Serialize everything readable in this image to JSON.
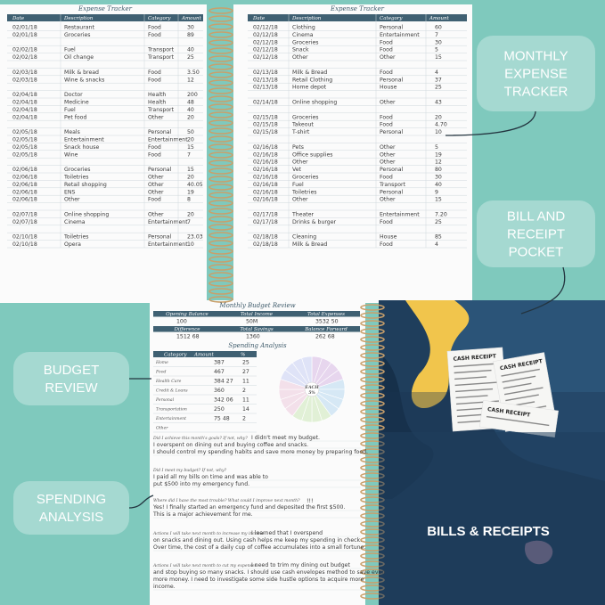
{
  "callouts": [
    "MONTHLY EXPENSE TRACKER",
    "BILL AND RECEIPT POCKET",
    "BUDGET REVIEW",
    "SPENDING ANALYSIS"
  ],
  "tracker_left": {
    "title": "Expense Tracker",
    "headers": [
      "Date",
      "Description",
      "Category",
      "Amount"
    ],
    "rows": [
      [
        "02/01/18",
        "Restaurant",
        "Food",
        "30"
      ],
      [
        "02/01/18",
        "Groceries",
        "Food",
        "89"
      ],
      null,
      [
        "02/02/18",
        "Fuel",
        "Transport",
        "40"
      ],
      [
        "02/02/18",
        "Oil change",
        "Transport",
        "25"
      ],
      null,
      [
        "02/03/18",
        "Milk & bread",
        "Food",
        "3.50"
      ],
      [
        "02/03/18",
        "Wine & snacks",
        "Food",
        "12"
      ],
      null,
      [
        "02/04/18",
        "Doctor",
        "Health",
        "200"
      ],
      [
        "02/04/18",
        "Medicine",
        "Health",
        "48"
      ],
      [
        "02/04/18",
        "Fuel",
        "Transport",
        "40"
      ],
      [
        "02/04/18",
        "Pet food",
        "Other",
        "20"
      ],
      null,
      [
        "02/05/18",
        "Meals",
        "Personal",
        "50"
      ],
      [
        "02/05/18",
        "Entertainment",
        "Entertainment",
        "20"
      ],
      [
        "02/05/18",
        "Snack house",
        "Food",
        "15"
      ],
      [
        "02/05/18",
        "Wine",
        "Food",
        "7"
      ],
      null,
      [
        "02/06/18",
        "Groceries",
        "Personal",
        "15"
      ],
      [
        "02/06/18",
        "Toiletries",
        "Other",
        "20"
      ],
      [
        "02/06/18",
        "Retail shopping",
        "Other",
        "40.05"
      ],
      [
        "02/06/18",
        "ENS",
        "Other",
        "19"
      ],
      [
        "02/06/18",
        "Other",
        "Food",
        "8"
      ],
      null,
      [
        "02/07/18",
        "Online shopping",
        "Other",
        "20"
      ],
      [
        "02/07/18",
        "Cinema",
        "Entertainment",
        "7"
      ],
      null,
      [
        "02/10/18",
        "Toiletries",
        "Personal",
        "23.03"
      ],
      [
        "02/10/18",
        "Opera",
        "Entertainment",
        "10"
      ]
    ]
  },
  "tracker_right": {
    "title": "Expense Tracker",
    "headers": [
      "Date",
      "Description",
      "Category",
      "Amount"
    ],
    "rows": [
      [
        "02/12/18",
        "Clothing",
        "Personal",
        "60"
      ],
      [
        "02/12/18",
        "Cinema",
        "Entertainment",
        "7"
      ],
      [
        "02/12/18",
        "Groceries",
        "Food",
        "30"
      ],
      [
        "02/12/18",
        "Snack",
        "Food",
        "5"
      ],
      [
        "02/12/18",
        "Other",
        "Other",
        "15"
      ],
      null,
      [
        "02/13/18",
        "Milk & Bread",
        "Food",
        "4"
      ],
      [
        "02/13/18",
        "Retail Clothing",
        "Personal",
        "37"
      ],
      [
        "02/13/18",
        "Home depot",
        "House",
        "25"
      ],
      null,
      [
        "02/14/18",
        "Online shopping",
        "Other",
        "43"
      ],
      null,
      [
        "02/15/18",
        "Groceries",
        "Food",
        "20"
      ],
      [
        "02/15/18",
        "Takeout",
        "Food",
        "4.70"
      ],
      [
        "02/15/18",
        "T-shirt",
        "Personal",
        "10"
      ],
      null,
      [
        "02/16/18",
        "Pets",
        "Other",
        "5"
      ],
      [
        "02/16/18",
        "Office supplies",
        "Other",
        "19"
      ],
      [
        "02/16/18",
        "Other",
        "Other",
        "12"
      ],
      [
        "02/16/18",
        "Vet",
        "Personal",
        "80"
      ],
      [
        "02/16/18",
        "Groceries",
        "Food",
        "30"
      ],
      [
        "02/16/18",
        "Fuel",
        "Transport",
        "40"
      ],
      [
        "02/16/18",
        "Toiletries",
        "Personal",
        "9"
      ],
      [
        "02/16/18",
        "Other",
        "Other",
        "15"
      ],
      null,
      [
        "02/17/18",
        "Theater",
        "Entertainment",
        "7.20"
      ],
      [
        "02/17/18",
        "Drinks & burger",
        "Food",
        "25"
      ],
      null,
      [
        "02/18/18",
        "Cleaning",
        "House",
        "85"
      ],
      [
        "02/18/18",
        "Milk & Bread",
        "Food",
        "4"
      ]
    ]
  },
  "budget_review": {
    "title": "Monthly Budget Review",
    "labels1": [
      "Opening Balance",
      "Total Income",
      "Total Expenses"
    ],
    "values1": [
      "100",
      "50M",
      "3532 50"
    ],
    "labels2": [
      "Difference",
      "Total Savings",
      "Balance Forward"
    ],
    "values2": [
      "1512 68",
      "1360",
      "262 68"
    ]
  },
  "spending": {
    "title": "Spending Analysis",
    "headers": [
      "Category",
      "Amount",
      "%"
    ],
    "rows": [
      [
        "Home",
        "387",
        "25"
      ],
      [
        "Food",
        "467",
        "27"
      ],
      [
        "Health Care",
        "384 27",
        "11"
      ],
      [
        "Credit & Loans",
        "360",
        "2"
      ],
      [
        "Personal",
        "342 06",
        "11"
      ],
      [
        "Transportation",
        "250",
        "14"
      ],
      [
        "Entertainment",
        "75 48",
        "2"
      ],
      [
        "Other",
        null,
        null
      ]
    ],
    "pie_label": [
      "EACH",
      "5%"
    ]
  },
  "questions": [
    {
      "q": "Did I achieve this month's goals? If not, why?",
      "a": [
        "I didn't meet my budget.",
        "I overspent on dining out and buying coffee and snacks.",
        "I should control my spending habits and save more money by preparing food."
      ]
    },
    {
      "q": "Did I meet my budget? If not, why?",
      "a": [
        "I paid all my bills on time and was able to",
        "put $500 into my emergency fund."
      ]
    },
    {
      "q": "Where did I have the most trouble? What could I improve next month?",
      "mark": "!!!",
      "a": [
        "Yes! I finally started an emergency fund and deposited the first $500.",
        "This is a major achievement for me."
      ]
    },
    {
      "q": "Actions I will take next month to increase my income:",
      "a": [
        "I learned that I overspend",
        "on snacks and dining out. Using cash helps me keep my spending in check.",
        "Over time, the cost of a daily cup of coffee accumulates into a small fortune."
      ]
    },
    {
      "q": "Actions I will take next month to cut my expenses:",
      "a": [
        "I need to trim my dining out budget",
        "and stop buying so many snacks. I should use cash envelopes method to save even",
        "more money. I need to investigate some side hustle options to acquire more",
        "income."
      ]
    }
  ],
  "pocket": {
    "label": "BILLS & RECEIPTS",
    "receipts": [
      "CASH RECEIPT",
      "CASH RECEIPT",
      "CASH RECEIPT"
    ]
  }
}
